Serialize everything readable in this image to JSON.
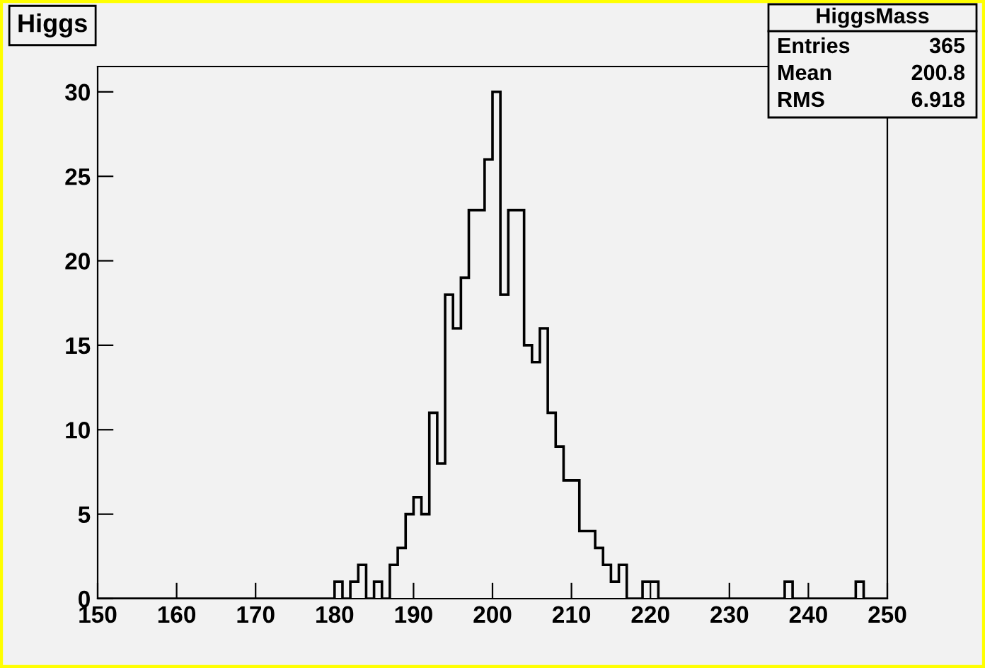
{
  "chart_data": {
    "type": "histogram",
    "title": "Higgs",
    "bins": [
      150,
      151,
      152,
      153,
      154,
      155,
      156,
      157,
      158,
      159,
      160,
      161,
      162,
      163,
      164,
      165,
      166,
      167,
      168,
      169,
      170,
      171,
      172,
      173,
      174,
      175,
      176,
      177,
      178,
      179,
      180,
      181,
      182,
      183,
      184,
      185,
      186,
      187,
      188,
      189,
      190,
      191,
      192,
      193,
      194,
      195,
      196,
      197,
      198,
      199,
      200,
      201,
      202,
      203,
      204,
      205,
      206,
      207,
      208,
      209,
      210,
      211,
      212,
      213,
      214,
      215,
      216,
      217,
      218,
      219,
      220,
      221,
      222,
      223,
      224,
      225,
      226,
      227,
      228,
      229,
      230,
      231,
      232,
      233,
      234,
      235,
      236,
      237,
      238,
      239,
      240,
      241,
      242,
      243,
      244,
      245,
      246,
      247,
      248,
      249,
      250
    ],
    "values": [
      0,
      0,
      0,
      0,
      0,
      0,
      0,
      0,
      0,
      0,
      0,
      0,
      0,
      0,
      0,
      0,
      0,
      0,
      0,
      0,
      0,
      0,
      0,
      0,
      0,
      0,
      0,
      0,
      0,
      0,
      1,
      0,
      1,
      2,
      0,
      1,
      0,
      2,
      3,
      5,
      6,
      5,
      11,
      8,
      18,
      16,
      19,
      23,
      23,
      26,
      30,
      18,
      23,
      23,
      15,
      14,
      16,
      11,
      9,
      7,
      7,
      4,
      4,
      3,
      2,
      1,
      2,
      0,
      0,
      1,
      1,
      0,
      0,
      0,
      0,
      0,
      0,
      0,
      0,
      0,
      0,
      0,
      0,
      0,
      0,
      0,
      0,
      1,
      0,
      0,
      0,
      0,
      0,
      0,
      0,
      0,
      1,
      0,
      0,
      0
    ],
    "color": "#000000",
    "xlim": [
      150,
      250
    ],
    "xticks": [
      150,
      160,
      170,
      180,
      190,
      200,
      210,
      220,
      230,
      240,
      250
    ],
    "ylim": [
      0,
      31.5
    ],
    "yticks": [
      0,
      5,
      10,
      15,
      20,
      25,
      30
    ],
    "annotations": [
      "HiggsMass",
      "Entries",
      "365",
      "Mean",
      "200.8",
      "RMS",
      "6.918"
    ]
  }
}
